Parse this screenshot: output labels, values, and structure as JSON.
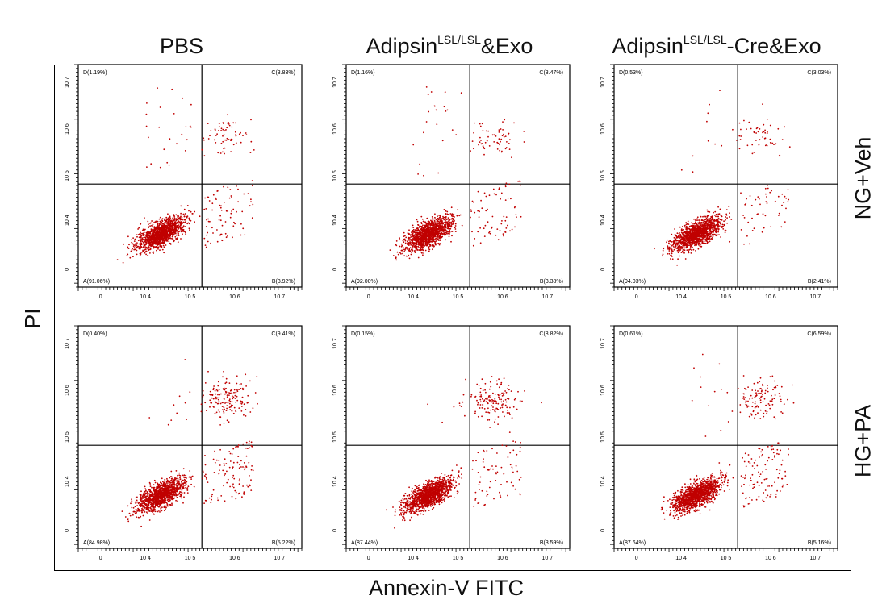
{
  "figure": {
    "y_axis_label": "PI",
    "x_axis_label": "Annexin-V FITC",
    "columns": [
      {
        "base": "PBS",
        "sup": "",
        "suffix": ""
      },
      {
        "base": "Adipsin",
        "sup": "LSL/LSL",
        "suffix": "&Exo"
      },
      {
        "base": "Adipsin",
        "sup": "LSL/LSL",
        "suffix": "-Cre&Exo"
      }
    ],
    "rows": [
      "NG+Veh",
      "HG+PA"
    ],
    "tick_labels": [
      "0",
      "10 4",
      "10 5",
      "10 6",
      "10 7"
    ],
    "y_tick_labels": [
      "0",
      "10 4",
      "10 5",
      "10 6",
      "10 7"
    ],
    "dot_color": "#c00000"
  },
  "chart_data": {
    "type": "scatter",
    "x_scale": "log (Annexin-V FITC)",
    "y_scale": "log (PI)",
    "xlim": [
      0,
      10000000
    ],
    "ylim": [
      0,
      10000000
    ],
    "grid": false,
    "panels": [
      {
        "row": "NG+Veh",
        "column": "PBS",
        "quadrants": {
          "D": "D(1.19%)",
          "C": "C(3.83%)",
          "A": "A(91.06%)",
          "B": "B(3.92%)"
        },
        "values": {
          "D": 1.19,
          "C": 3.83,
          "A": 91.06,
          "B": 3.92
        }
      },
      {
        "row": "NG+Veh",
        "column": "Adipsin LSL/LSL &Exo",
        "quadrants": {
          "D": "D(1.16%)",
          "C": "C(3.47%)",
          "A": "A(92.00%)",
          "B": "B(3.38%)"
        },
        "values": {
          "D": 1.16,
          "C": 3.47,
          "A": 92.0,
          "B": 3.38
        }
      },
      {
        "row": "NG+Veh",
        "column": "Adipsin LSL/LSL -Cre&Exo",
        "quadrants": {
          "D": "D(0.53%)",
          "C": "C(3.03%)",
          "A": "A(94.03%)",
          "B": "B(2.41%)"
        },
        "values": {
          "D": 0.53,
          "C": 3.03,
          "A": 94.03,
          "B": 2.41
        }
      },
      {
        "row": "HG+PA",
        "column": "PBS",
        "quadrants": {
          "D": "D(0.40%)",
          "C": "C(9.41%)",
          "A": "A(84.98%)",
          "B": "B(5.22%)"
        },
        "values": {
          "D": 0.4,
          "C": 9.41,
          "A": 84.98,
          "B": 5.22
        }
      },
      {
        "row": "HG+PA",
        "column": "Adipsin LSL/LSL &Exo",
        "quadrants": {
          "D": "D(0.15%)",
          "C": "C(8.82%)",
          "A": "A(87.44%)",
          "B": "B(3.59%)"
        },
        "values": {
          "D": 0.15,
          "C": 8.82,
          "A": 87.44,
          "B": 3.59
        }
      },
      {
        "row": "HG+PA",
        "column": "Adipsin LSL/LSL -Cre&Exo",
        "quadrants": {
          "D": "D(0.61%)",
          "C": "C(6.59%)",
          "A": "A(87.64%)",
          "B": "B(5.16%)"
        },
        "values": {
          "D": 0.61,
          "C": 6.59,
          "A": 87.64,
          "B": 5.16
        }
      }
    ]
  }
}
